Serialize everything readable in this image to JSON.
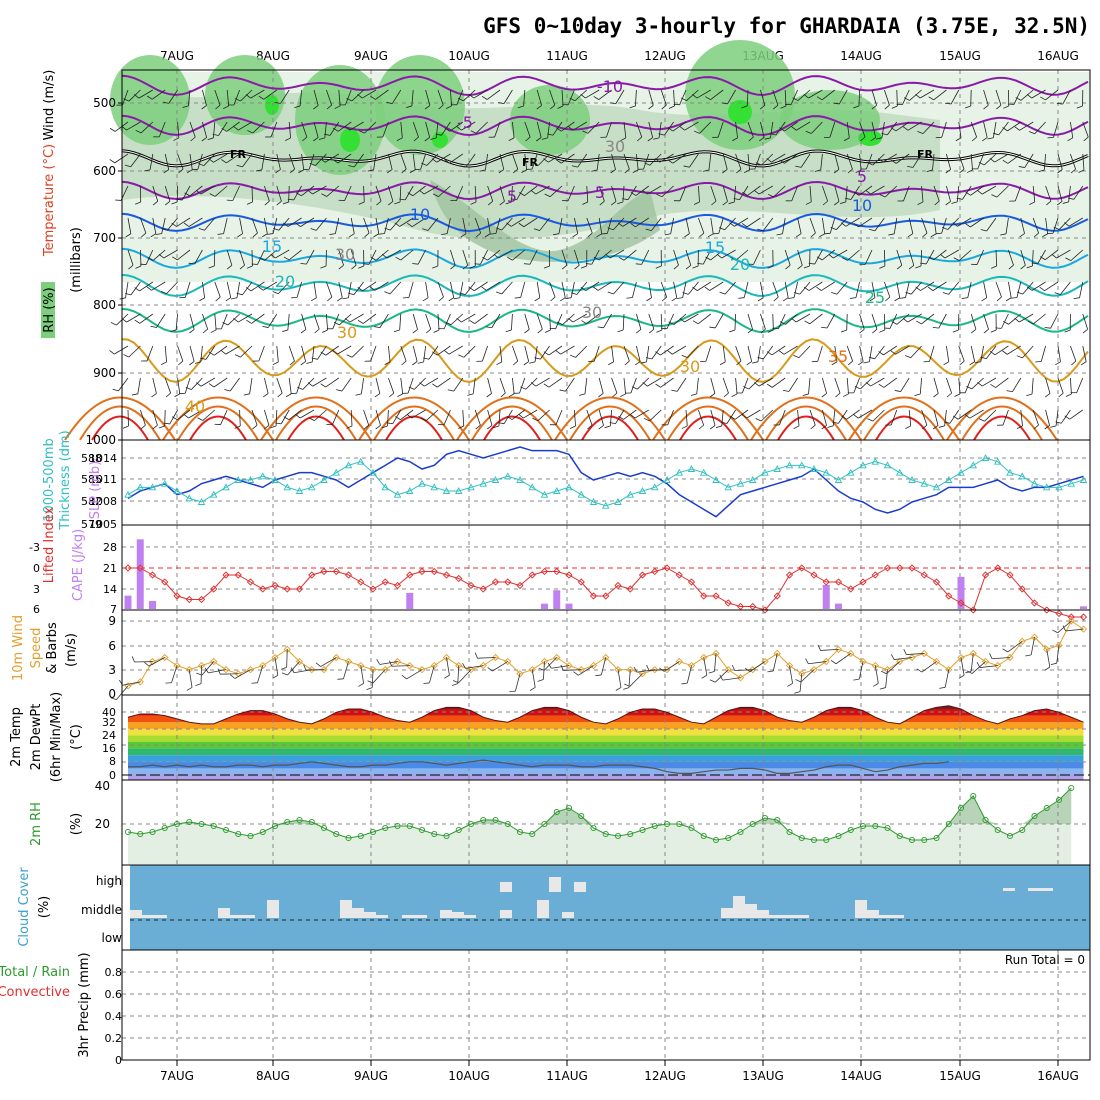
{
  "title": "GFS 0~10day 3-hourly for GHARDAIA (3.75E, 32.5N)",
  "date_labels": [
    "7AUG",
    "8AUG",
    "9AUG",
    "10AUG",
    "11AUG",
    "12AUG",
    "13AUG",
    "14AUG",
    "15AUG",
    "16AUG"
  ],
  "colors": {
    "rh_light": "#e6f3e6",
    "rh_mid": "#c6dfc6",
    "rh_dark": "#9fc29f",
    "rh_green": "#7dcf7d",
    "rh_bright": "#34e034",
    "temp_neg": "#8a1aa8",
    "temp_5": "#8a1aa8",
    "temp_10": "#1a5ae0",
    "temp_15": "#1aa8e0",
    "temp_20": "#1ab8b8",
    "temp_25": "#1ab888",
    "temp_30": "#d89a1a",
    "temp_35": "#e0701a",
    "temp_40": "#e0201a",
    "slp": "#1a3ccc",
    "thickness": "#30c0c0",
    "lifted": "#e03030",
    "cape": "#c080f0",
    "wind10m": "#e0a030",
    "rh2m": "#2e9a2e",
    "cloud_bg": "#6aaed6",
    "cloud": "#e8e8e8"
  },
  "panels": {
    "upper": {
      "ylabels": [
        "Wind (m/s)",
        "Temperature (°C)",
        "RH (%)",
        "(millibars)"
      ],
      "yticks": [
        "500",
        "600",
        "700",
        "800",
        "900",
        "1000"
      ],
      "contour_labels": [
        "-10",
        "-5",
        "5",
        "5",
        "5",
        "10",
        "10",
        "15",
        "15",
        "20",
        "20",
        "25",
        "30",
        "30",
        "35",
        "40",
        "FR",
        "FR",
        "FR",
        "30",
        "30",
        "30"
      ]
    },
    "slp": {
      "ylabels": [
        "SLP (mb)",
        "1000-500mb",
        "Thickness (dm)"
      ],
      "yticks_left": [
        "588",
        "585",
        "582",
        "579"
      ],
      "yticks_right": [
        "1014",
        "1011",
        "1008",
        "1005"
      ]
    },
    "lifted": {
      "ylabels": [
        "Lifted Index",
        "CAPE (J/kg)"
      ],
      "yticks_left": [
        "-3",
        "0",
        "3",
        "6"
      ],
      "yticks_right": [
        "28",
        "21",
        "14",
        "7"
      ]
    },
    "wind": {
      "ylabels": [
        "10m Wind",
        "Speed",
        "& Barbs",
        "(m/s)"
      ],
      "yticks": [
        "9",
        "6",
        "3",
        "0"
      ]
    },
    "temp": {
      "ylabels": [
        "2m Temp",
        "2m DewPt",
        "(6hr Min/Max)",
        "(°C)"
      ],
      "yticks": [
        "40",
        "32",
        "24",
        "16",
        "8",
        "0"
      ]
    },
    "rh": {
      "ylabels": [
        "2m RH",
        "(%)"
      ],
      "yticks": [
        "40",
        "20"
      ]
    },
    "cloud": {
      "ylabels": [
        "Cloud Cover",
        "(%)"
      ],
      "levels": [
        "high",
        "middle",
        "low"
      ]
    },
    "precip": {
      "ylabels": [
        "Total / Rain",
        "Convective",
        "3hr Precip (mm)"
      ],
      "yticks": [
        "0.8",
        "0.6",
        "0.4",
        "0.2",
        "0"
      ],
      "run_total": "Run Total = 0"
    }
  },
  "chart_data": [
    {
      "type": "line",
      "title": "GFS 0~10day 3-hourly for GHARDAIA (3.75E, 32.5N)",
      "note": "SLP (mb) and 1000-500mb thickness (dm) time series, 3-hourly",
      "series": [
        {
          "name": "SLP (mb)",
          "values": [
            1008.5,
            1009.5,
            1010,
            1010.5,
            1009,
            1009.5,
            1010.5,
            1011,
            1011.5,
            1011,
            1010.5,
            1010,
            1011,
            1011.5,
            1012,
            1012,
            1011.5,
            1011,
            1010,
            1011,
            1012,
            1013,
            1014,
            1013.5,
            1012.5,
            1013,
            1014.5,
            1015,
            1014.5,
            1014,
            1014.5,
            1015,
            1015.5,
            1015,
            1015,
            1015,
            1014.5,
            1012,
            1011,
            1011.5,
            1012,
            1011.5,
            1012,
            1011.5,
            1010.5,
            1009,
            1008,
            1007,
            1006,
            1007.5,
            1009,
            1009.5,
            1010,
            1010.5,
            1011,
            1011.5,
            1012.5,
            1011,
            1009.5,
            1008.5,
            1008,
            1007,
            1006.5,
            1007,
            1008,
            1008.5,
            1009,
            1010,
            1010,
            1010,
            1010.5,
            1011,
            1010,
            1009.5,
            1010,
            1010,
            1010.5,
            1011,
            1011.5,
            1012
          ]
        },
        {
          "name": "1000-500mb Thickness (dm)",
          "values": [
            583,
            584,
            584,
            584.5,
            583.5,
            582.5,
            582,
            583,
            584,
            585,
            585,
            585.5,
            585,
            584,
            583.5,
            584,
            585,
            586,
            587,
            587.5,
            586,
            584,
            583,
            583.5,
            584.5,
            584,
            583.5,
            583.5,
            584,
            584.5,
            585,
            585.5,
            585,
            584,
            583,
            583.5,
            584,
            583,
            582,
            581.5,
            582,
            583,
            583.5,
            584,
            585,
            586,
            586.5,
            586,
            585,
            584,
            584.5,
            585,
            586,
            586.5,
            587,
            587,
            586.5,
            586,
            585,
            586,
            587,
            587.5,
            587,
            586,
            585,
            584.5,
            584,
            585,
            586,
            587,
            588,
            587.5,
            586,
            585.5,
            584.5,
            584,
            584,
            584.5,
            585,
            586,
            585.5,
            584.5,
            583.5,
            583,
            584,
            585.5,
            585.5,
            584.5,
            583,
            581
          ]
        }
      ]
    },
    {
      "type": "bar",
      "note": "CAPE (J/kg) bars and Lifted Index line",
      "series": [
        {
          "name": "Lifted Index",
          "values": [
            0,
            0,
            1,
            2,
            4,
            4.5,
            4.5,
            3,
            1,
            1,
            2,
            3,
            2.5,
            3,
            3,
            1,
            0.5,
            0.5,
            1,
            2,
            3,
            2,
            2.5,
            1,
            0.5,
            0.5,
            1,
            1.5,
            2.5,
            3,
            2,
            2,
            2.5,
            1,
            0.5,
            0.5,
            1,
            2,
            4,
            4,
            2.5,
            3,
            1,
            0.5,
            0,
            1,
            2,
            4,
            4,
            5,
            5.5,
            5.5,
            6,
            4,
            1,
            0,
            1,
            2,
            2,
            3,
            2,
            1,
            0,
            0,
            0,
            1,
            2,
            4,
            5,
            6,
            1,
            0,
            1,
            3,
            5,
            6,
            6.5,
            7,
            7,
            7,
            7,
            6.5,
            6,
            6,
            5.5,
            5
          ]
        },
        {
          "name": "CAPE (J/kg)",
          "values": [
            5,
            26,
            3,
            0,
            0,
            0,
            0,
            0,
            0,
            0,
            0,
            0,
            0,
            0,
            0,
            0,
            0,
            0,
            0,
            0,
            0,
            0,
            0,
            6,
            0,
            0,
            0,
            0,
            0,
            0,
            0,
            0,
            0,
            0,
            2,
            7,
            2,
            0,
            0,
            0,
            0,
            0,
            0,
            0,
            0,
            0,
            0,
            0,
            0,
            0,
            0,
            0,
            0,
            0,
            0,
            0,
            0,
            9,
            2,
            0,
            0,
            0,
            0,
            0,
            0,
            0,
            0,
            0,
            12,
            0,
            0,
            0,
            0,
            0,
            0,
            0,
            0,
            0,
            1,
            0,
            0,
            0,
            0,
            0,
            0,
            0,
            0,
            6,
            0,
            0,
            0
          ]
        }
      ]
    },
    {
      "type": "line",
      "note": "10m wind speed (m/s)",
      "series": [
        {
          "name": "10m Wind Speed",
          "values": [
            1,
            1.5,
            4,
            4.5,
            3.5,
            3,
            3.5,
            4,
            3,
            2.5,
            3,
            3.5,
            4.5,
            5.5,
            4,
            3,
            3,
            4.5,
            4,
            3.5,
            3,
            3,
            4,
            3.5,
            3,
            3.5,
            4.5,
            3.5,
            3,
            3.5,
            4.5,
            4,
            2.5,
            3,
            4,
            4.5,
            3.5,
            3,
            3.5,
            4.5,
            3,
            3,
            2.5,
            3,
            3,
            4,
            3.5,
            4.5,
            5,
            3,
            2,
            3,
            4,
            5,
            3.5,
            2.5,
            3,
            4,
            5.5,
            5,
            4,
            3.5,
            3,
            4,
            4.5,
            5,
            4,
            3,
            4.5,
            5,
            4,
            3.5,
            4.5,
            6.5,
            7,
            5.5,
            6,
            9,
            8,
            7,
            9,
            9,
            8,
            7,
            6,
            5.5,
            5,
            5,
            4.5,
            5,
            4,
            3.5
          ]
        }
      ]
    },
    {
      "type": "area",
      "note": "2m temperature and dewpoint (°C)",
      "series": [
        {
          "name": "2m Temp",
          "values": [
            35,
            37,
            37,
            36,
            34,
            32,
            31,
            31,
            34,
            37,
            39,
            39,
            37,
            34,
            32,
            31,
            34,
            38,
            40,
            40,
            38,
            35,
            33,
            32,
            35,
            39,
            41,
            41,
            39,
            35,
            33,
            32,
            35,
            39,
            41,
            41,
            39,
            35,
            32,
            31,
            34,
            38,
            40,
            40,
            38,
            35,
            32,
            31,
            35,
            39,
            41,
            41,
            39,
            35,
            33,
            32,
            35,
            39,
            41,
            41,
            39,
            35,
            32,
            31,
            35,
            39,
            41,
            42,
            40,
            36,
            33,
            31,
            34,
            36,
            39,
            40,
            38,
            35,
            32,
            30,
            28
          ]
        },
        {
          "name": "2m DewPt",
          "values": [
            5,
            5,
            6,
            5,
            6,
            5,
            6,
            5,
            5,
            6,
            6,
            5,
            6,
            6,
            7,
            8,
            7,
            6,
            5,
            5,
            6,
            6,
            7,
            8,
            8,
            7,
            6,
            7,
            8,
            9,
            8,
            7,
            6,
            5,
            6,
            6,
            6,
            5,
            5,
            6,
            6,
            6,
            5,
            4,
            2,
            1,
            1,
            2,
            3,
            3,
            4,
            4,
            3,
            1,
            1,
            2,
            3,
            5,
            6,
            6,
            4,
            2,
            3,
            5,
            6,
            7,
            7,
            8
          ]
        }
      ]
    },
    {
      "type": "area",
      "note": "2m relative humidity (%)",
      "series": [
        {
          "name": "2m RH",
          "values": [
            16,
            15,
            16,
            18,
            20,
            21,
            20,
            19,
            17,
            15,
            14,
            16,
            19,
            21,
            22,
            21,
            18,
            15,
            13,
            14,
            16,
            18,
            19,
            19,
            17,
            15,
            14,
            17,
            20,
            22,
            22,
            20,
            16,
            15,
            20,
            26,
            28,
            24,
            18,
            15,
            14,
            15,
            17,
            19,
            20,
            20,
            18,
            14,
            12,
            13,
            16,
            20,
            23,
            22,
            16,
            13,
            12,
            12,
            14,
            17,
            19,
            19,
            18,
            14,
            12,
            12,
            13,
            20,
            28,
            34,
            22,
            17,
            14,
            17,
            24,
            28,
            32,
            38
          ]
        }
      ]
    },
    {
      "type": "bar",
      "note": "3hr precipitation (mm)",
      "ylim": [
        0,
        0.9
      ],
      "values": [
        0
      ]
    }
  ]
}
